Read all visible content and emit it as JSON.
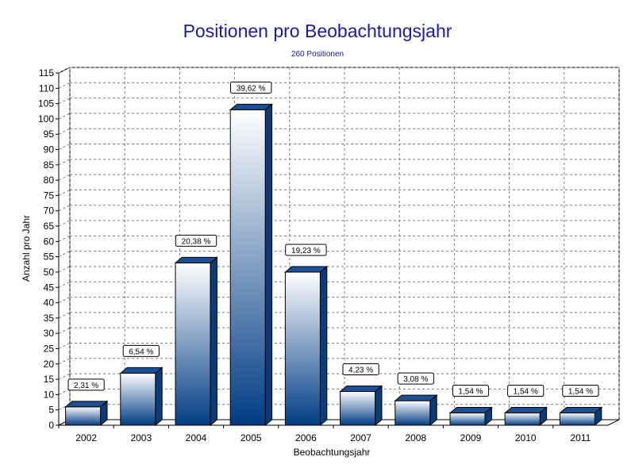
{
  "chart_data": {
    "type": "bar",
    "title": "Positionen pro Beobachtungsjahr",
    "subtitle": "260 Positionen",
    "xlabel": "Beobachtungsjahr",
    "ylabel": "Anzahl pro Jahr",
    "categories": [
      "2002",
      "2003",
      "2004",
      "2005",
      "2006",
      "2007",
      "2008",
      "2009",
      "2010",
      "2011"
    ],
    "values": [
      6,
      17,
      53,
      103,
      50,
      11,
      8,
      4,
      4,
      4
    ],
    "data_labels": [
      "2,31 %",
      "6,54 %",
      "20,38 %",
      "39,62 %",
      "19,23 %",
      "4,23 %",
      "3,08 %",
      "1,54 %",
      "1,54 %",
      "1,54 %"
    ],
    "ylim": [
      0,
      115
    ],
    "ytick_step": 5,
    "grid": true,
    "legend": "none",
    "colors": {
      "title": "#1a1aa6",
      "subtitle": "#1a1aa6",
      "bar_top": "#ffffff",
      "bar_bottom": "#003c84",
      "bar_side": "#0b3c7a",
      "bar_cap": "#1d4f96",
      "grid": "#7a7a7a",
      "axis": "#000000"
    }
  }
}
